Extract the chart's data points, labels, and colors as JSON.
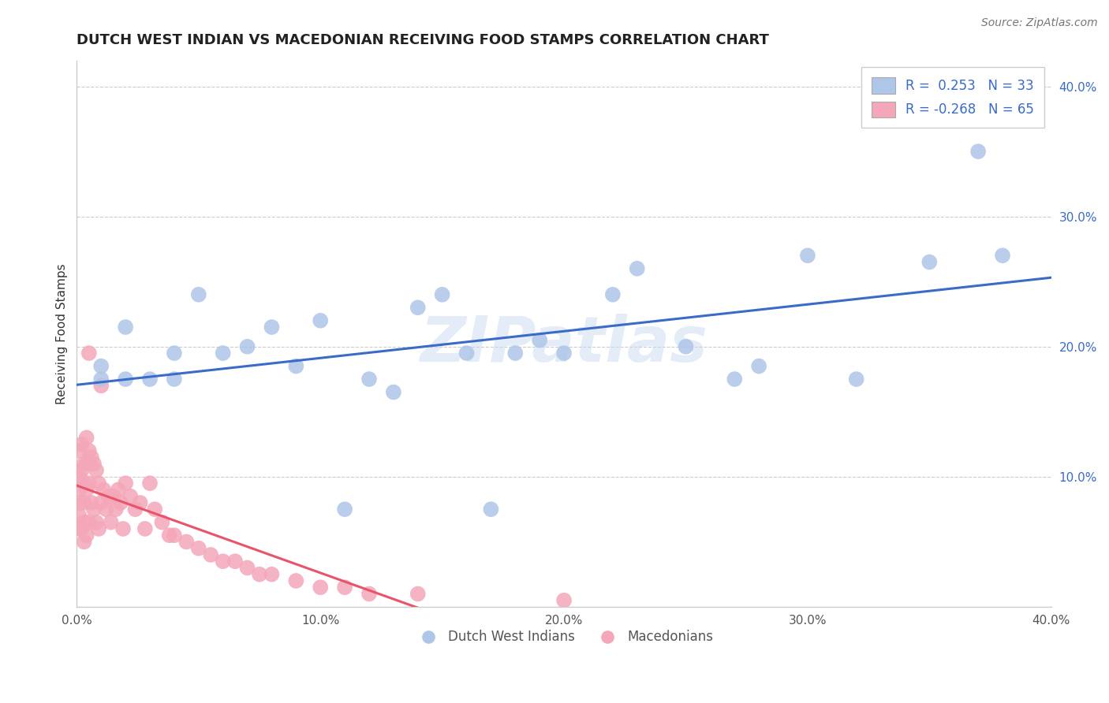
{
  "title": "DUTCH WEST INDIAN VS MACEDONIAN RECEIVING FOOD STAMPS CORRELATION CHART",
  "source": "Source: ZipAtlas.com",
  "xlabel": "",
  "ylabel": "Receiving Food Stamps",
  "xlim": [
    0.0,
    0.4
  ],
  "ylim": [
    0.0,
    0.42
  ],
  "xticks": [
    0.0,
    0.1,
    0.2,
    0.3,
    0.4
  ],
  "yticks": [
    0.0,
    0.1,
    0.2,
    0.3,
    0.4
  ],
  "xtick_labels": [
    "0.0%",
    "10.0%",
    "20.0%",
    "30.0%",
    "40.0%"
  ],
  "ytick_labels": [
    "",
    "10.0%",
    "20.0%",
    "30.0%",
    "40.0%"
  ],
  "legend1_label": "R =  0.253   N = 33",
  "legend2_label": "R = -0.268   N = 65",
  "blue_color": "#aec6e8",
  "pink_color": "#f4a7b9",
  "blue_line_color": "#3a6bc9",
  "pink_line_color": "#e8546a",
  "watermark": "ZIPatlas",
  "legend_label1": "Dutch West Indians",
  "legend_label2": "Macedonians",
  "blue_scatter_x": [
    0.01,
    0.01,
    0.02,
    0.02,
    0.03,
    0.04,
    0.04,
    0.05,
    0.06,
    0.07,
    0.08,
    0.09,
    0.1,
    0.11,
    0.12,
    0.13,
    0.14,
    0.15,
    0.16,
    0.17,
    0.18,
    0.19,
    0.2,
    0.22,
    0.23,
    0.25,
    0.27,
    0.28,
    0.3,
    0.32,
    0.35,
    0.37,
    0.38
  ],
  "blue_scatter_y": [
    0.175,
    0.185,
    0.175,
    0.215,
    0.175,
    0.175,
    0.195,
    0.24,
    0.195,
    0.2,
    0.215,
    0.185,
    0.22,
    0.075,
    0.175,
    0.165,
    0.23,
    0.24,
    0.195,
    0.075,
    0.195,
    0.205,
    0.195,
    0.24,
    0.26,
    0.2,
    0.175,
    0.185,
    0.27,
    0.175,
    0.265,
    0.35,
    0.27
  ],
  "pink_scatter_x": [
    0.001,
    0.001,
    0.001,
    0.001,
    0.001,
    0.001,
    0.002,
    0.002,
    0.002,
    0.003,
    0.003,
    0.003,
    0.003,
    0.003,
    0.004,
    0.004,
    0.004,
    0.004,
    0.005,
    0.005,
    0.005,
    0.005,
    0.006,
    0.006,
    0.007,
    0.007,
    0.008,
    0.008,
    0.009,
    0.009,
    0.01,
    0.01,
    0.011,
    0.012,
    0.013,
    0.014,
    0.015,
    0.016,
    0.017,
    0.018,
    0.019,
    0.02,
    0.022,
    0.024,
    0.026,
    0.028,
    0.03,
    0.032,
    0.035,
    0.038,
    0.04,
    0.045,
    0.05,
    0.055,
    0.06,
    0.065,
    0.07,
    0.075,
    0.08,
    0.09,
    0.1,
    0.11,
    0.12,
    0.14,
    0.2
  ],
  "pink_scatter_y": [
    0.12,
    0.1,
    0.09,
    0.08,
    0.07,
    0.06,
    0.125,
    0.105,
    0.06,
    0.11,
    0.095,
    0.08,
    0.065,
    0.05,
    0.13,
    0.11,
    0.09,
    0.055,
    0.195,
    0.12,
    0.095,
    0.065,
    0.115,
    0.08,
    0.11,
    0.075,
    0.105,
    0.065,
    0.095,
    0.06,
    0.17,
    0.08,
    0.09,
    0.075,
    0.085,
    0.065,
    0.085,
    0.075,
    0.09,
    0.08,
    0.06,
    0.095,
    0.085,
    0.075,
    0.08,
    0.06,
    0.095,
    0.075,
    0.065,
    0.055,
    0.055,
    0.05,
    0.045,
    0.04,
    0.035,
    0.035,
    0.03,
    0.025,
    0.025,
    0.02,
    0.015,
    0.015,
    0.01,
    0.01,
    0.005
  ],
  "pink_line_xlim": [
    0.0,
    0.22
  ],
  "blue_line_xlim": [
    0.0,
    0.4
  ]
}
